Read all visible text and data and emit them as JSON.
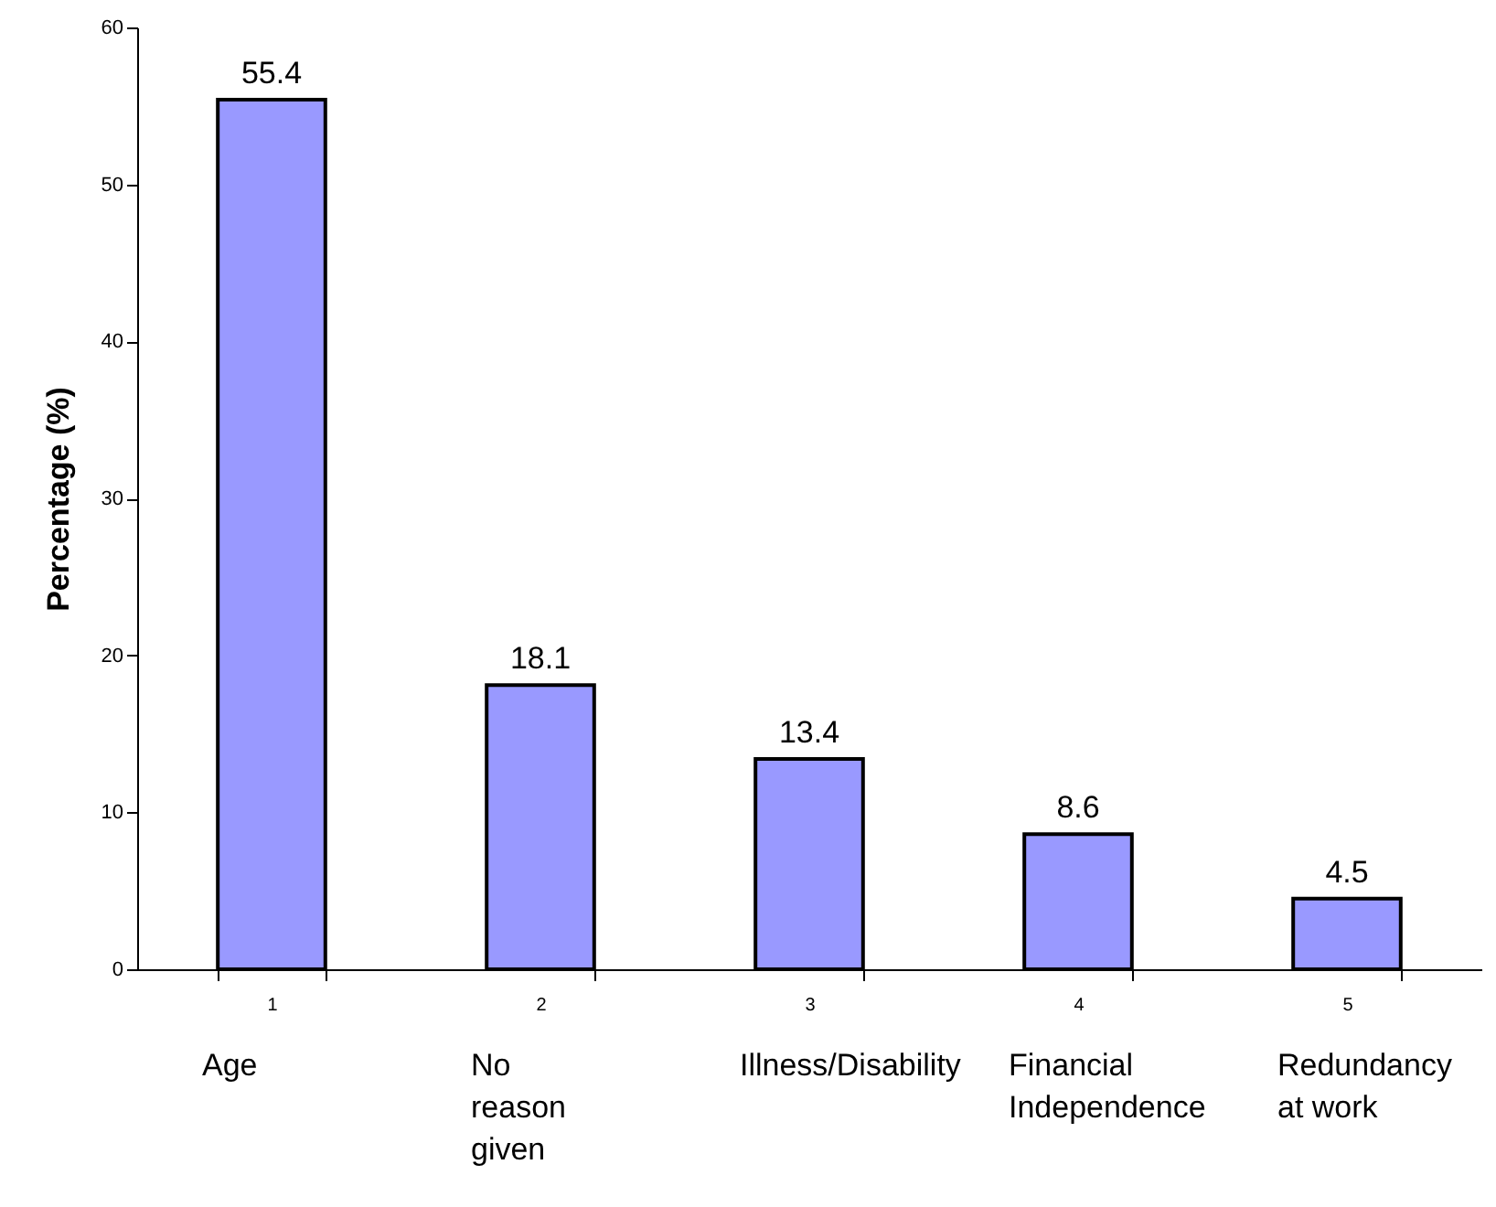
{
  "chart_data": {
    "type": "bar",
    "ylabel": "Percentage (%)",
    "categories": [
      "1",
      "2",
      "3",
      "4",
      "5"
    ],
    "values": [
      55.4,
      18.1,
      13.4,
      8.6,
      4.5
    ],
    "color": "#9999ff",
    "data_labels": true,
    "ylim": [
      0,
      60
    ],
    "yticks": [
      0,
      10,
      20,
      30,
      40,
      50,
      60
    ],
    "grid": false,
    "annotations": [
      "Age",
      "No reason given",
      "Illness/Disability",
      "Financial Independence",
      "Redundancy at work"
    ]
  }
}
